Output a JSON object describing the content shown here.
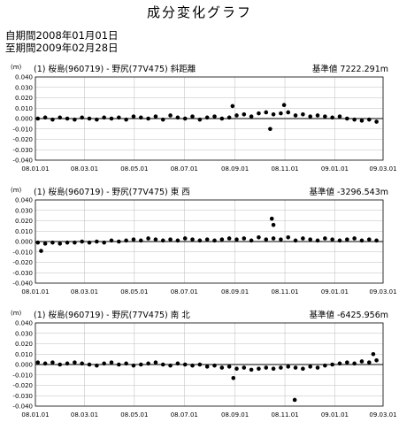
{
  "page": {
    "title": "成分変化グラフ",
    "period_start": "自期間2008年01月01日",
    "period_end": "至期間2009年02月28日"
  },
  "colors": {
    "axis": "#000000",
    "grid": "#bdbdbd",
    "marker": "#000000",
    "baseline": "#000000"
  },
  "chart_data": [
    {
      "type": "scatter",
      "title": "(1) 桜島(960719) - 野尻(77V475)  斜距離",
      "unit_label": "(m)",
      "base_label": "基準値",
      "base_value": "7222.291m",
      "x_tick_labels": [
        "08.01.01",
        "08.03.01",
        "08.05.01",
        "08.07.01",
        "08.09.01",
        "08.11.01",
        "09.01.01",
        "09.03.01"
      ],
      "y_tick_labels": [
        "0.040",
        "0.030",
        "0.020",
        "0.010",
        "0.000",
        "-0.010",
        "-0.020",
        "-0.030",
        "-0.040"
      ],
      "xlim": [
        "2008-01-01",
        "2009-03-01"
      ],
      "ylim": [
        -0.04,
        0.04
      ],
      "grid": true,
      "series": [
        {
          "x": [
            "2008-01-04",
            "2008-01-13",
            "2008-01-22",
            "2008-01-31",
            "2008-02-09",
            "2008-02-18",
            "2008-02-27",
            "2008-03-07",
            "2008-03-16",
            "2008-03-25",
            "2008-04-03",
            "2008-04-12",
            "2008-04-21",
            "2008-04-30",
            "2008-05-09",
            "2008-05-18",
            "2008-05-27",
            "2008-06-05",
            "2008-06-14",
            "2008-06-23",
            "2008-07-02",
            "2008-07-11",
            "2008-07-20",
            "2008-07-29",
            "2008-08-07",
            "2008-08-16",
            "2008-08-25",
            "2008-09-03",
            "2008-09-12",
            "2008-09-21",
            "2008-09-30",
            "2008-10-09",
            "2008-10-18",
            "2008-10-27",
            "2008-11-05",
            "2008-11-14",
            "2008-11-23",
            "2008-12-02",
            "2008-12-11",
            "2008-12-20",
            "2008-12-29",
            "2009-01-07",
            "2009-01-16",
            "2009-01-25",
            "2009-02-03",
            "2009-02-12",
            "2009-02-21",
            "2008-08-29",
            "2008-10-14",
            "2008-10-31"
          ],
          "y": [
            0.0,
            0.001,
            -0.001,
            0.001,
            0.0,
            -0.001,
            0.001,
            0.0,
            -0.001,
            0.001,
            0.0,
            0.001,
            -0.001,
            0.002,
            0.001,
            0.0,
            0.002,
            -0.001,
            0.003,
            0.001,
            0.0,
            0.002,
            -0.001,
            0.001,
            0.002,
            0.0,
            0.001,
            0.003,
            0.004,
            0.002,
            0.005,
            0.006,
            0.004,
            0.005,
            0.006,
            0.003,
            0.004,
            0.002,
            0.003,
            0.002,
            0.001,
            0.002,
            0.0,
            -0.001,
            -0.002,
            -0.001,
            -0.003,
            0.012,
            -0.01,
            0.013
          ]
        }
      ]
    },
    {
      "type": "scatter",
      "title": "(1) 桜島(960719) - 野尻(77V475)  東  西",
      "unit_label": "(m)",
      "base_label": "基準値",
      "base_value": "-3296.543m",
      "x_tick_labels": [
        "08.01.01",
        "08.03.01",
        "08.05.01",
        "08.07.01",
        "08.09.01",
        "08.11.01",
        "09.01.01",
        "09.03.01"
      ],
      "y_tick_labels": [
        "0.040",
        "0.030",
        "0.020",
        "0.010",
        "0.000",
        "-0.010",
        "-0.020",
        "-0.030",
        "-0.040"
      ],
      "xlim": [
        "2008-01-01",
        "2009-03-01"
      ],
      "ylim": [
        -0.04,
        0.04
      ],
      "grid": true,
      "series": [
        {
          "x": [
            "2008-01-04",
            "2008-01-13",
            "2008-01-22",
            "2008-01-31",
            "2008-02-09",
            "2008-02-18",
            "2008-02-27",
            "2008-03-07",
            "2008-03-16",
            "2008-03-25",
            "2008-04-03",
            "2008-04-12",
            "2008-04-21",
            "2008-04-30",
            "2008-05-09",
            "2008-05-18",
            "2008-05-27",
            "2008-06-05",
            "2008-06-14",
            "2008-06-23",
            "2008-07-02",
            "2008-07-11",
            "2008-07-20",
            "2008-07-29",
            "2008-08-07",
            "2008-08-16",
            "2008-08-25",
            "2008-09-03",
            "2008-09-12",
            "2008-09-21",
            "2008-09-30",
            "2008-10-09",
            "2008-10-18",
            "2008-10-27",
            "2008-11-05",
            "2008-11-14",
            "2008-11-23",
            "2008-12-02",
            "2008-12-11",
            "2008-12-20",
            "2008-12-29",
            "2009-01-07",
            "2009-01-16",
            "2009-01-25",
            "2009-02-03",
            "2009-02-12",
            "2009-02-21",
            "2008-01-08",
            "2008-10-16",
            "2008-10-18"
          ],
          "y": [
            -0.001,
            -0.002,
            -0.001,
            -0.002,
            -0.001,
            -0.001,
            0.0,
            -0.001,
            0.0,
            -0.001,
            0.001,
            0.0,
            0.001,
            0.002,
            0.001,
            0.003,
            0.002,
            0.001,
            0.002,
            0.001,
            0.003,
            0.002,
            0.001,
            0.002,
            0.001,
            0.002,
            0.003,
            0.002,
            0.003,
            0.001,
            0.004,
            0.002,
            0.003,
            0.002,
            0.004,
            0.001,
            0.003,
            0.002,
            0.001,
            0.003,
            0.002,
            0.001,
            0.002,
            0.003,
            0.001,
            0.002,
            0.001,
            -0.009,
            0.022,
            0.016
          ]
        }
      ]
    },
    {
      "type": "scatter",
      "title": "(1) 桜島(960719) - 野尻(77V475)  南  北",
      "unit_label": "(m)",
      "base_label": "基準値",
      "base_value": "-6425.956m",
      "x_tick_labels": [
        "08.01.01",
        "08.03.01",
        "08.05.01",
        "08.07.01",
        "08.09.01",
        "08.11.01",
        "09.01.01",
        "09.03.01"
      ],
      "y_tick_labels": [
        "0.040",
        "0.030",
        "0.020",
        "0.010",
        "0.000",
        "-0.010",
        "-0.020",
        "-0.030",
        "-0.040"
      ],
      "xlim": [
        "2008-01-01",
        "2009-03-01"
      ],
      "ylim": [
        -0.04,
        0.04
      ],
      "grid": true,
      "series": [
        {
          "x": [
            "2008-01-04",
            "2008-01-13",
            "2008-01-22",
            "2008-01-31",
            "2008-02-09",
            "2008-02-18",
            "2008-02-27",
            "2008-03-07",
            "2008-03-16",
            "2008-03-25",
            "2008-04-03",
            "2008-04-12",
            "2008-04-21",
            "2008-04-30",
            "2008-05-09",
            "2008-05-18",
            "2008-05-27",
            "2008-06-05",
            "2008-06-14",
            "2008-06-23",
            "2008-07-02",
            "2008-07-11",
            "2008-07-20",
            "2008-07-29",
            "2008-08-07",
            "2008-08-16",
            "2008-08-25",
            "2008-09-03",
            "2008-09-12",
            "2008-09-21",
            "2008-09-30",
            "2008-10-09",
            "2008-10-18",
            "2008-10-27",
            "2008-11-05",
            "2008-11-14",
            "2008-11-23",
            "2008-12-02",
            "2008-12-11",
            "2008-12-20",
            "2008-12-29",
            "2009-01-07",
            "2009-01-16",
            "2009-01-25",
            "2009-02-03",
            "2009-02-12",
            "2009-02-21",
            "2008-08-30",
            "2008-11-13",
            "2009-02-17"
          ],
          "y": [
            0.002,
            0.001,
            0.002,
            0.0,
            0.001,
            0.002,
            0.001,
            0.0,
            -0.001,
            0.001,
            0.002,
            0.0,
            0.001,
            -0.001,
            0.0,
            0.001,
            0.002,
            0.0,
            -0.001,
            0.001,
            0.0,
            -0.001,
            0.0,
            -0.002,
            -0.001,
            -0.003,
            -0.002,
            -0.004,
            -0.003,
            -0.005,
            -0.004,
            -0.003,
            -0.004,
            -0.003,
            -0.002,
            -0.003,
            -0.004,
            -0.002,
            -0.003,
            -0.001,
            0.0,
            0.001,
            0.002,
            0.001,
            0.003,
            0.002,
            0.004,
            -0.013,
            -0.034,
            0.01
          ]
        }
      ]
    }
  ]
}
